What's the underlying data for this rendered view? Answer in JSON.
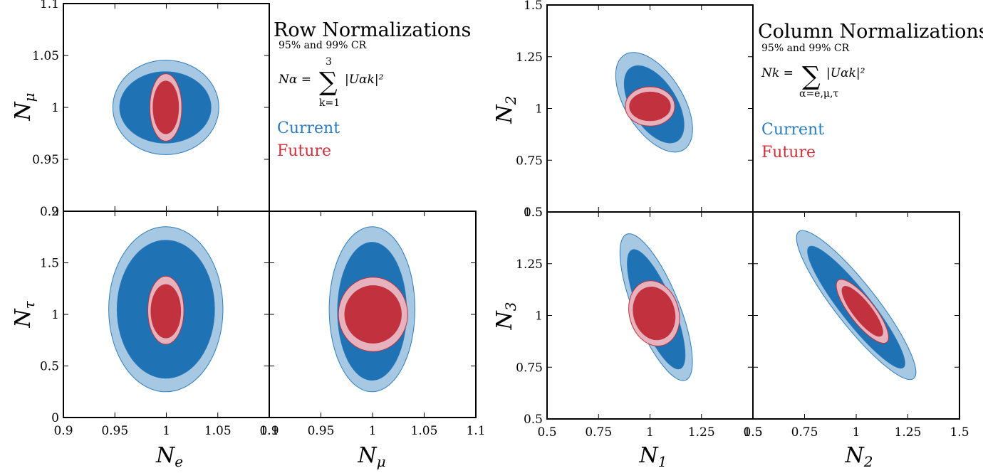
{
  "colors": {
    "current_99": "#a6c8e2",
    "current_95": "#1f73b5",
    "future_99": "#e6b2bd",
    "future_95": "#c1323e",
    "current_text": "#2b7bbf",
    "future_text": "#d0303a",
    "current_edge": "#2f7dbd",
    "future_edge": "#c1323e"
  },
  "annotations": {
    "row": {
      "title": "Row Normalizations",
      "subtitle": "95% and 99% CR",
      "formula_lhs": "Nα = ",
      "sum_upper": "3",
      "sum_lower": "k=1",
      "formula_rhs": "|Uαk|²"
    },
    "col": {
      "title": "Column Normalizations",
      "subtitle": "95% and 99% CR",
      "formula_lhs": "Nk = ",
      "sum_lower": "α=e,μ,τ",
      "formula_rhs": "|Uαk|²"
    },
    "legend": {
      "current": "Current",
      "future": "Future"
    }
  },
  "chart_data": [
    {
      "type": "contour",
      "panel": "Ne-Nmu",
      "xlim": [
        0.9,
        1.1
      ],
      "ylim": [
        0.9,
        1.1
      ],
      "xticks": [],
      "xtick_labels": [],
      "yticks": [
        0.9,
        0.95,
        1.0,
        1.05,
        1.1
      ],
      "ytick_labels": [
        "0.9",
        "0.95",
        "1",
        "1.05",
        "1.1"
      ],
      "xlabel": "",
      "ylabel_main": "N",
      "ylabel_sub": "μ",
      "series": [
        {
          "name": "Current",
          "level": "99%",
          "cx": 0.9995,
          "cy": 1.0,
          "rx": 0.0515,
          "ry": 0.0455,
          "tilt": 0
        },
        {
          "name": "Current",
          "level": "95%",
          "cx": 0.999,
          "cy": 1.0,
          "rx": 0.0445,
          "ry": 0.0345,
          "tilt": 0
        },
        {
          "name": "Future",
          "level": "99%",
          "cx": 0.9995,
          "cy": 1.0,
          "rx": 0.0155,
          "ry": 0.0325,
          "tilt": 0
        },
        {
          "name": "Future",
          "level": "95%",
          "cx": 0.9995,
          "cy": 1.0,
          "rx": 0.0125,
          "ry": 0.0255,
          "tilt": 0
        }
      ]
    },
    {
      "type": "contour",
      "panel": "Ne-Ntau",
      "xlim": [
        0.9,
        1.1
      ],
      "ylim": [
        0,
        2
      ],
      "xticks": [
        0.9,
        0.95,
        1.0,
        1.05,
        1.1
      ],
      "xtick_labels": [
        "0.9",
        "0.95",
        "1",
        "1.05",
        "1.1"
      ],
      "yticks": [
        0,
        0.5,
        1.0,
        1.5,
        2.0
      ],
      "ytick_labels": [
        "0",
        "0.5",
        "1",
        "1.5",
        "2"
      ],
      "xlabel_main": "N",
      "xlabel_sub": "e",
      "ylabel_main": "N",
      "ylabel_sub": "τ",
      "series": [
        {
          "name": "Current",
          "level": "99%",
          "cx": 0.9995,
          "cy": 1.05,
          "rx": 0.0555,
          "ry": 0.8,
          "tilt": 0
        },
        {
          "name": "Current",
          "level": "95%",
          "cx": 0.9995,
          "cy": 1.05,
          "rx": 0.0475,
          "ry": 0.67,
          "tilt": 0
        },
        {
          "name": "Future",
          "level": "99%",
          "cx": 0.9995,
          "cy": 1.04,
          "rx": 0.0175,
          "ry": 0.33,
          "tilt": 0
        },
        {
          "name": "Future",
          "level": "95%",
          "cx": 0.9995,
          "cy": 1.03,
          "rx": 0.0145,
          "ry": 0.26,
          "tilt": 0
        }
      ]
    },
    {
      "type": "contour",
      "panel": "Nmu-Ntau",
      "xlim": [
        0.9,
        1.1
      ],
      "ylim": [
        0,
        2
      ],
      "xticks": [
        0.9,
        0.95,
        1.0,
        1.05,
        1.1
      ],
      "xtick_labels": [
        "0.9",
        "0.95",
        "1",
        "1.05",
        "1.1"
      ],
      "yticks": [],
      "ytick_labels": [],
      "xlabel_main": "N",
      "xlabel_sub": "μ",
      "series": [
        {
          "name": "Current",
          "level": "99%",
          "cx": 0.9995,
          "cy": 1.05,
          "rx": 0.0415,
          "ry": 0.8,
          "tilt": 0
        },
        {
          "name": "Current",
          "level": "95%",
          "cx": 0.9995,
          "cy": 1.03,
          "rx": 0.0335,
          "ry": 0.67,
          "tilt": 0
        },
        {
          "name": "Future",
          "level": "99%",
          "cx": 1.0005,
          "cy": 1.0,
          "rx": 0.0335,
          "ry": 0.36,
          "tilt": 0
        },
        {
          "name": "Future",
          "level": "95%",
          "cx": 1.0005,
          "cy": 1.0,
          "rx": 0.0275,
          "ry": 0.28,
          "tilt": 0
        }
      ]
    },
    {
      "type": "contour",
      "panel": "N1-N2",
      "xlim": [
        0.5,
        1.5
      ],
      "ylim": [
        0.5,
        1.5
      ],
      "xticks": [],
      "xtick_labels": [],
      "yticks": [
        0.5,
        0.75,
        1.0,
        1.25,
        1.5
      ],
      "ytick_labels": [
        "0.5",
        "0.75",
        "1",
        "1.25",
        "1.5"
      ],
      "ylabel_main": "N",
      "ylabel_sub": "2",
      "series": [
        {
          "name": "Current",
          "level": "99%",
          "cx": 1.02,
          "cy": 1.03,
          "rx": 0.14,
          "ry": 0.27,
          "tilt": 32
        },
        {
          "name": "Current",
          "level": "95%",
          "cx": 1.02,
          "cy": 1.02,
          "rx": 0.11,
          "ry": 0.21,
          "tilt": 32
        },
        {
          "name": "Future",
          "level": "99%",
          "cx": 1.0,
          "cy": 1.01,
          "rx": 0.12,
          "ry": 0.095,
          "tilt": 0
        },
        {
          "name": "Future",
          "level": "95%",
          "cx": 1.0,
          "cy": 1.01,
          "rx": 0.1,
          "ry": 0.07,
          "tilt": 0
        }
      ]
    },
    {
      "type": "contour",
      "panel": "N1-N3",
      "xlim": [
        0.5,
        1.5
      ],
      "ylim": [
        0.5,
        1.5
      ],
      "xticks": [
        0.5,
        0.75,
        1.0,
        1.25,
        1.5
      ],
      "xtick_labels": [
        "0.5",
        "0.75",
        "1",
        "1.25",
        "1.5"
      ],
      "yticks": [
        0.5,
        0.75,
        1.0,
        1.25,
        1.5
      ],
      "ytick_labels": [
        "0.5",
        "0.75",
        "1",
        "1.25",
        "1.5"
      ],
      "xlabel_main": "N",
      "xlabel_sub": "1",
      "ylabel_main": "N",
      "ylabel_sub": "3",
      "series": [
        {
          "name": "Current",
          "level": "99%",
          "cx": 1.03,
          "cy": 1.04,
          "rx": 0.11,
          "ry": 0.38,
          "tilt": 22
        },
        {
          "name": "Current",
          "level": "95%",
          "cx": 1.03,
          "cy": 1.03,
          "rx": 0.085,
          "ry": 0.31,
          "tilt": 22
        },
        {
          "name": "Future",
          "level": "99%",
          "cx": 1.02,
          "cy": 1.01,
          "rx": 0.12,
          "ry": 0.16,
          "tilt": 15
        },
        {
          "name": "Future",
          "level": "95%",
          "cx": 1.02,
          "cy": 1.01,
          "rx": 0.1,
          "ry": 0.13,
          "tilt": 15
        }
      ]
    },
    {
      "type": "contour",
      "panel": "N2-N3",
      "xlim": [
        0.5,
        1.5
      ],
      "ylim": [
        0.5,
        1.5
      ],
      "xticks": [
        0.5,
        0.75,
        1.0,
        1.25,
        1.5
      ],
      "xtick_labels": [
        "0.5",
        "0.75",
        "1",
        "1.25",
        "1.5"
      ],
      "yticks": [],
      "ytick_labels": [],
      "xlabel_main": "N",
      "xlabel_sub": "2",
      "series": [
        {
          "name": "Current",
          "level": "99%",
          "cx": 1.0,
          "cy": 1.05,
          "rx": 0.1,
          "ry": 0.45,
          "tilt": 38
        },
        {
          "name": "Current",
          "level": "95%",
          "cx": 1.0,
          "cy": 1.04,
          "rx": 0.075,
          "ry": 0.37,
          "tilt": 38
        },
        {
          "name": "Future",
          "level": "99%",
          "cx": 1.03,
          "cy": 1.02,
          "rx": 0.06,
          "ry": 0.19,
          "tilt": 38
        },
        {
          "name": "Future",
          "level": "95%",
          "cx": 1.03,
          "cy": 1.02,
          "rx": 0.045,
          "ry": 0.15,
          "tilt": 38
        }
      ]
    }
  ]
}
